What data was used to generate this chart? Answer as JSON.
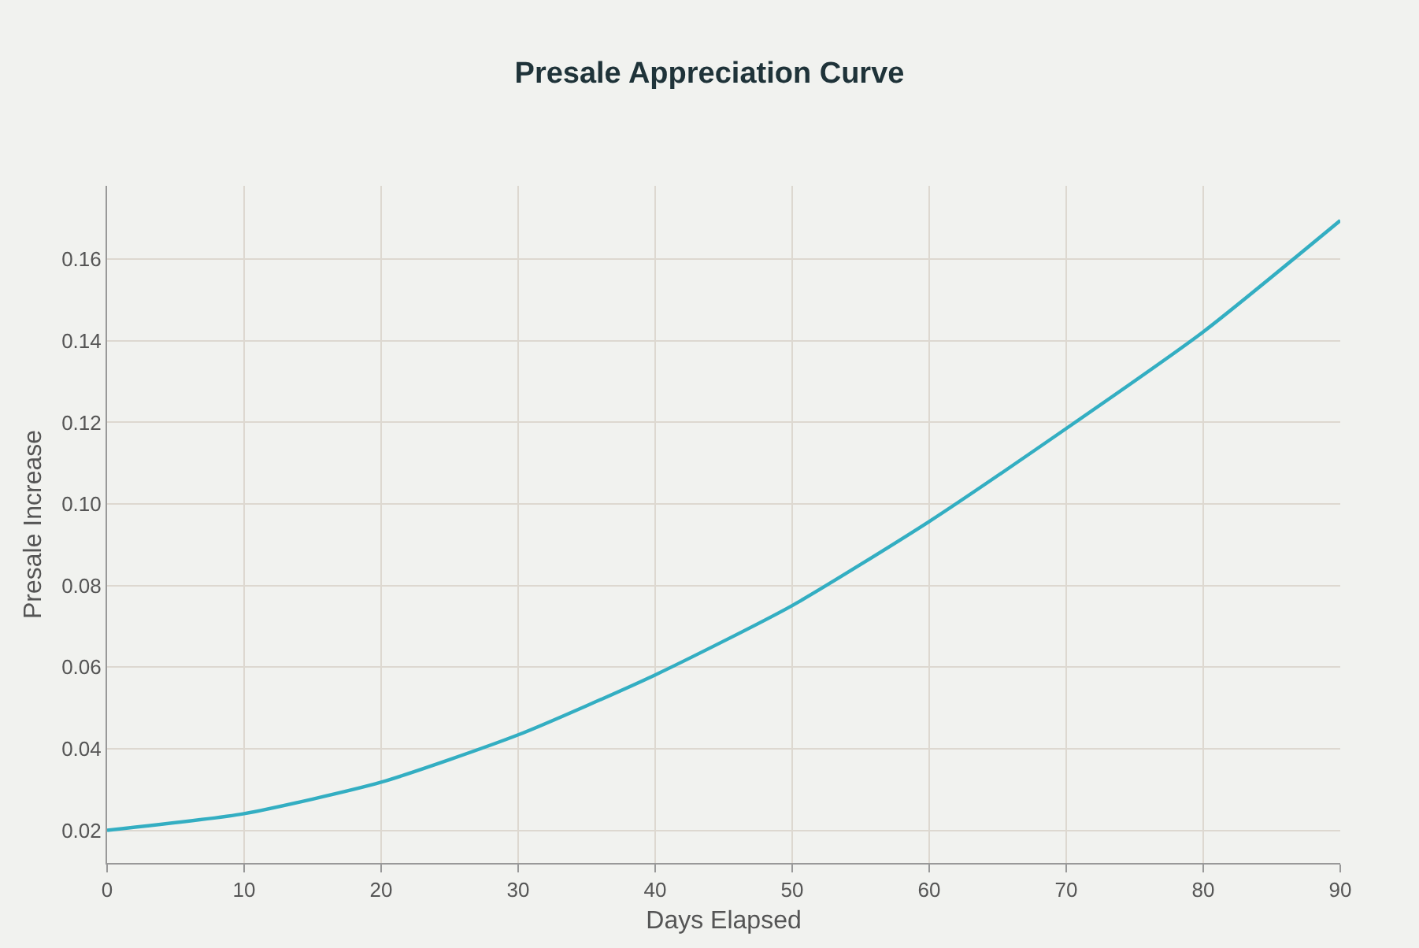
{
  "chart_data": {
    "type": "line",
    "title": "Presale Appreciation Curve",
    "xlabel": "Days Elapsed",
    "ylabel": "Presale Increase",
    "x": [
      0,
      10,
      20,
      30,
      40,
      50,
      60,
      70,
      80,
      90
    ],
    "series": [
      {
        "color": "#33aec2",
        "values": [
          0.02,
          0.0241,
          0.0318,
          0.0434,
          0.0581,
          0.0751,
          0.0957,
          0.1185,
          0.1422,
          0.1695
        ]
      }
    ],
    "xlim": [
      0,
      90
    ],
    "ylim": [
      0.012,
      0.178
    ],
    "xticks": [
      0,
      10,
      20,
      30,
      40,
      50,
      60,
      70,
      80,
      90
    ],
    "yticks": [
      {
        "value": 0.02,
        "label": "0.02"
      },
      {
        "value": 0.04,
        "label": "0.04"
      },
      {
        "value": 0.06,
        "label": "0.06"
      },
      {
        "value": 0.08,
        "label": "0.08"
      },
      {
        "value": 0.1,
        "label": "0.10"
      },
      {
        "value": 0.12,
        "label": "0.12"
      },
      {
        "value": 0.14,
        "label": "0.14"
      },
      {
        "value": 0.16,
        "label": "0.16"
      }
    ],
    "grid": true,
    "marker": "none",
    "line_style": "solid"
  }
}
